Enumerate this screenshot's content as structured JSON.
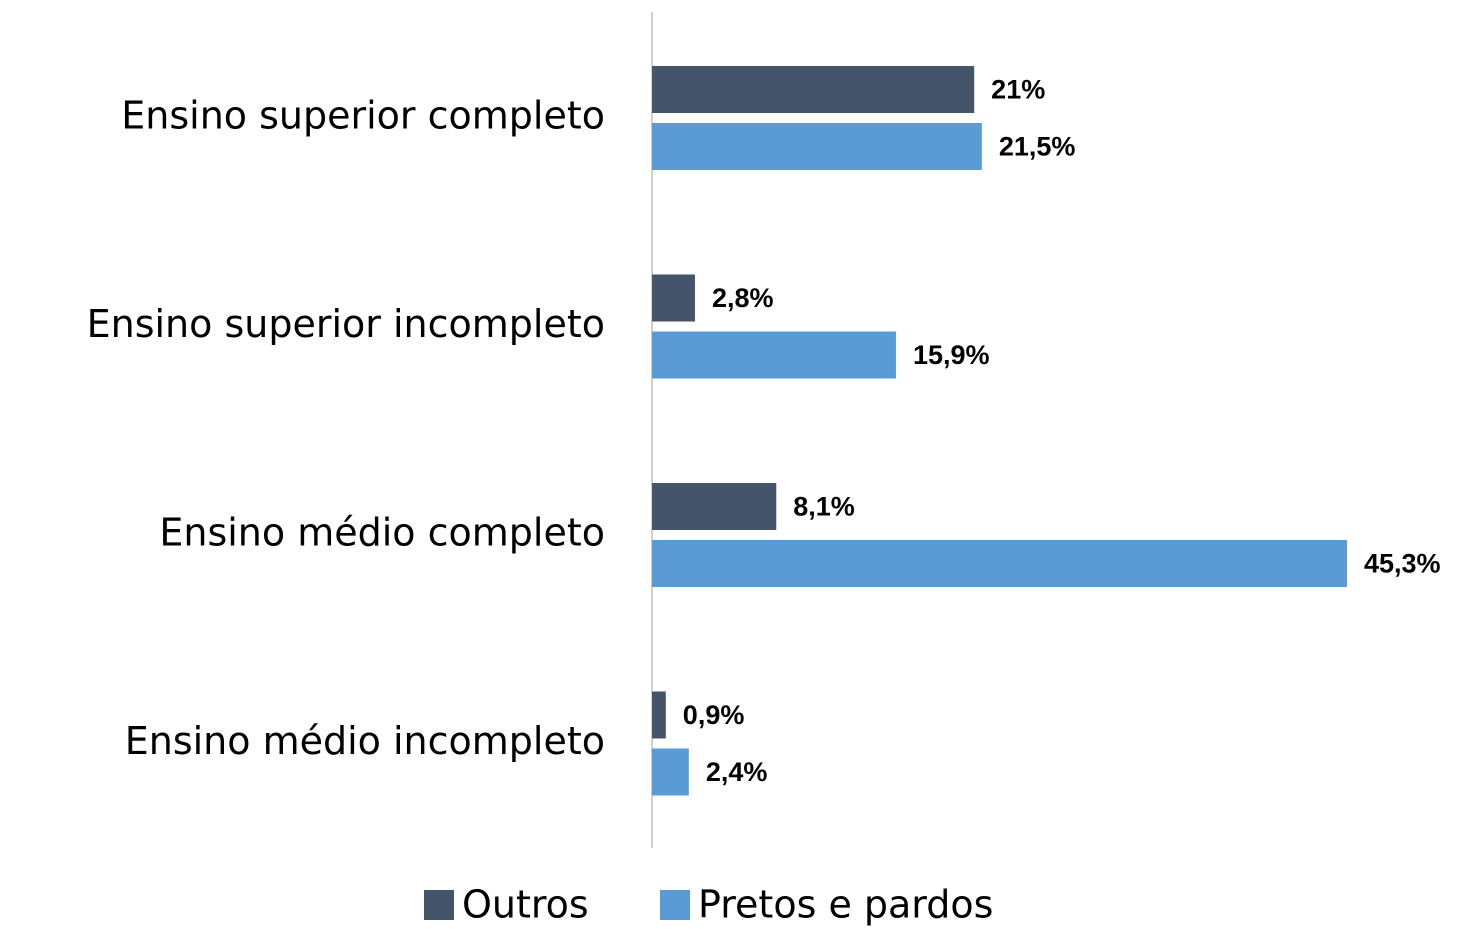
{
  "chart_data": {
    "type": "barh",
    "categories": [
      "Ensino superior completo",
      "Ensino superior incompleto",
      "Ensino médio completo",
      "Ensino médio incompleto"
    ],
    "series": [
      {
        "name": "Outros",
        "color": "#44546a",
        "values": [
          21,
          2.8,
          8.1,
          0.9
        ],
        "value_labels": [
          "21%",
          "2,8%",
          "8,1%",
          "0,9%"
        ]
      },
      {
        "name": "Pretos e pardos",
        "color": "#5b9bd5",
        "values": [
          21.5,
          15.9,
          45.3,
          2.4
        ],
        "value_labels": [
          "21,5%",
          "15,9%",
          "45,3%",
          "2,4%"
        ]
      }
    ],
    "legend": "bottom"
  }
}
